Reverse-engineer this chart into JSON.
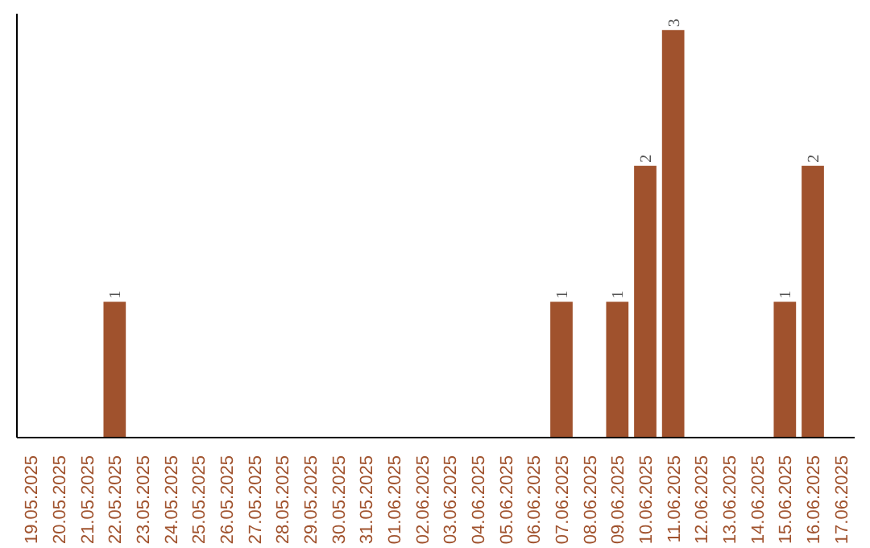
{
  "chart_data": {
    "type": "bar",
    "categories": [
      "19.05.2025",
      "20.05.2025",
      "21.05.2025",
      "22.05.2025",
      "23.05.2025",
      "24.05.2025",
      "25.05.2025",
      "26.05.2025",
      "27.05.2025",
      "28.05.2025",
      "29.05.2025",
      "30.05.2025",
      "31.05.2025",
      "01.06.2025",
      "02.06.2025",
      "03.06.2025",
      "04.06.2025",
      "05.06.2025",
      "06.06.2025",
      "07.06.2025",
      "08.06.2025",
      "09.06.2025",
      "10.06.2025",
      "11.06.2025",
      "12.06.2025",
      "13.06.2025",
      "14.06.2025",
      "15.06.2025",
      "16.06.2025",
      "17.06.2025"
    ],
    "values": [
      0,
      0,
      0,
      1,
      0,
      0,
      0,
      0,
      0,
      0,
      0,
      0,
      0,
      0,
      0,
      0,
      0,
      0,
      0,
      1,
      0,
      1,
      2,
      3,
      0,
      0,
      0,
      1,
      2,
      0
    ],
    "value_labels": [
      null,
      null,
      null,
      "1",
      null,
      null,
      null,
      null,
      null,
      null,
      null,
      null,
      null,
      null,
      null,
      null,
      null,
      null,
      null,
      "1",
      null,
      "1",
      "2",
      "3",
      null,
      null,
      null,
      "1",
      "2",
      null
    ],
    "color": "#a0522d",
    "tick_labels": "x",
    "grid": false
  }
}
